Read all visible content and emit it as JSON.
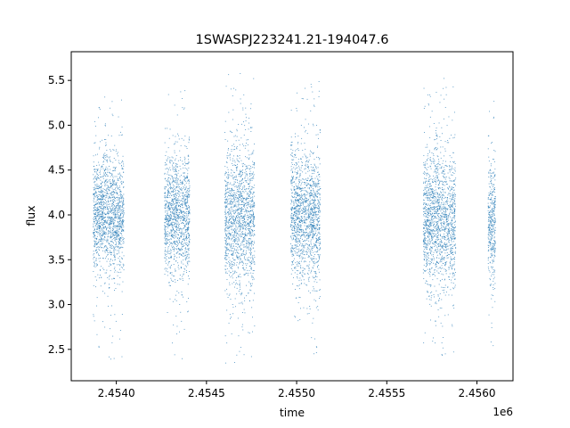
{
  "chart_data": {
    "type": "scatter",
    "title": "1SWASPJ223241.21-194047.6",
    "xlabel": "time",
    "ylabel": "flux",
    "x_offset_label": "1e6",
    "xlim": [
      2453750,
      2456200
    ],
    "ylim": [
      2.15,
      5.82
    ],
    "x_ticks": [
      2.454,
      2.4545,
      2.455,
      2.4555,
      2.456
    ],
    "x_tick_labels": [
      "2.4540",
      "2.4545",
      "2.4550",
      "2.4555",
      "2.4560"
    ],
    "y_ticks": [
      2.5,
      3.0,
      3.5,
      4.0,
      4.5,
      5.0,
      5.5
    ],
    "y_tick_labels": [
      "2.5",
      "3.0",
      "3.5",
      "4.0",
      "4.5",
      "5.0",
      "5.5"
    ],
    "grid": false,
    "legend": "none",
    "color": "#1f77b4",
    "series": [
      {
        "observing_seasons": [
          {
            "x_start": 2453870,
            "x_end": 2454040,
            "y_center": 4.02,
            "y_spread": 0.28,
            "y_min": 2.35,
            "y_max": 5.4
          },
          {
            "x_start": 2454265,
            "x_end": 2454405,
            "y_center": 4.02,
            "y_spread": 0.3,
            "y_min": 2.35,
            "y_max": 5.4
          },
          {
            "x_start": 2454600,
            "x_end": 2454765,
            "y_center": 3.98,
            "y_spread": 0.34,
            "y_min": 2.35,
            "y_max": 5.62
          },
          {
            "x_start": 2454965,
            "x_end": 2455130,
            "y_center": 4.0,
            "y_spread": 0.32,
            "y_min": 2.4,
            "y_max": 5.5
          },
          {
            "x_start": 2455700,
            "x_end": 2455880,
            "y_center": 3.97,
            "y_spread": 0.34,
            "y_min": 2.4,
            "y_max": 5.55
          },
          {
            "x_start": 2456060,
            "x_end": 2456100,
            "y_center": 3.92,
            "y_spread": 0.28,
            "y_min": 2.5,
            "y_max": 5.28
          }
        ]
      }
    ]
  }
}
